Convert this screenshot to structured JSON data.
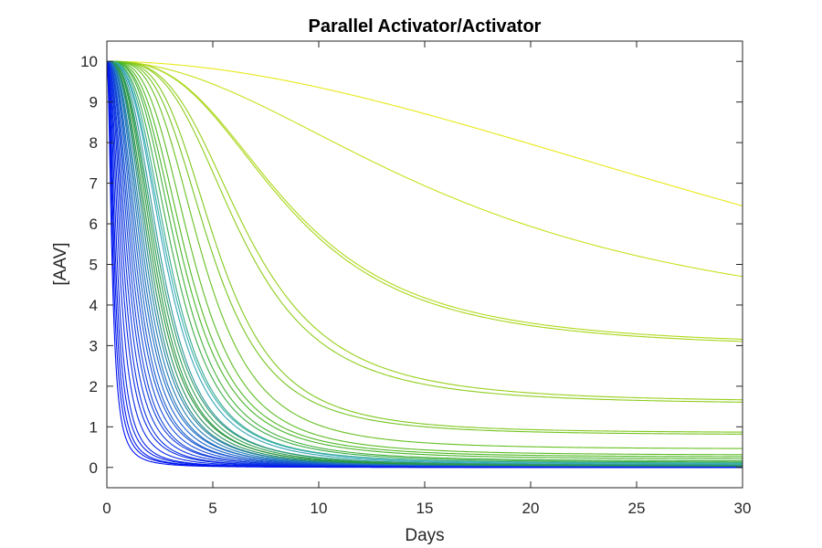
{
  "chart_data": {
    "type": "line",
    "title": "Parallel Activator/Activator",
    "xlabel": "Days",
    "ylabel": "[AAV]",
    "xlim": [
      0,
      30
    ],
    "ylim": [
      -0.5,
      10.5
    ],
    "x_ticks": [
      0,
      5,
      10,
      15,
      20,
      25,
      30
    ],
    "y_ticks": [
      0,
      1,
      2,
      3,
      4,
      5,
      6,
      7,
      8,
      9,
      10
    ],
    "grid": false,
    "legend": "none",
    "box": true,
    "initial_value": 10,
    "curve_model": "y(t) = yf + (10 - yf) * (1 + (t/t50)^n)^-1",
    "series": [
      {
        "t50": 41,
        "n": 1.9,
        "yf": 0,
        "color": "#e8e81a"
      },
      {
        "t50": 17,
        "n": 2.0,
        "yf": 3.0,
        "color": "#c8e01a"
      },
      {
        "t50": 8.6,
        "n": 2.8,
        "yf": 2.95,
        "color": "#b0d91a"
      },
      {
        "t50": 8.5,
        "n": 2.8,
        "yf": 2.9,
        "color": "#a8d51a"
      },
      {
        "t50": 6.6,
        "n": 3.2,
        "yf": 1.6,
        "color": "#96d01a"
      },
      {
        "t50": 6.3,
        "n": 3.2,
        "yf": 1.55,
        "color": "#8ecd1c"
      },
      {
        "t50": 5.2,
        "n": 3.5,
        "yf": 0.85,
        "color": "#80c81e"
      },
      {
        "t50": 4.9,
        "n": 3.4,
        "yf": 0.8,
        "color": "#74c420"
      },
      {
        "t50": 4.5,
        "n": 3.4,
        "yf": 0.45,
        "color": "#68c022"
      },
      {
        "t50": 4.1,
        "n": 3.3,
        "yf": 0.3,
        "color": "#5cbc24"
      },
      {
        "t50": 3.8,
        "n": 3.2,
        "yf": 0.25,
        "color": "#50b826"
      },
      {
        "t50": 3.6,
        "n": 3.1,
        "yf": 0.2,
        "color": "#48b42a"
      },
      {
        "t50": 3.4,
        "n": 3.1,
        "yf": 0.15,
        "color": "#42b03a"
      },
      {
        "t50": 3.2,
        "n": 3.0,
        "yf": 0.12,
        "color": "#3cac4a"
      },
      {
        "t50": 3.0,
        "n": 3.0,
        "yf": 0.1,
        "color": "#38aa8c"
      },
      {
        "t50": 2.9,
        "n": 2.9,
        "yf": 0.08,
        "color": "#36b0b0"
      },
      {
        "t50": 2.8,
        "n": 2.9,
        "yf": 0.06,
        "color": "#34a4b8"
      },
      {
        "t50": 2.6,
        "n": 2.9,
        "yf": 0.05,
        "color": "#3098a0"
      },
      {
        "t50": 2.5,
        "n": 2.8,
        "yf": 0.04,
        "color": "#2e9a6a"
      },
      {
        "t50": 2.4,
        "n": 2.8,
        "yf": 0.03,
        "color": "#2c9e50"
      },
      {
        "t50": 2.3,
        "n": 2.8,
        "yf": 0.02,
        "color": "#2a9a46"
      },
      {
        "t50": 2.2,
        "n": 2.7,
        "yf": 0.02,
        "color": "#28943e"
      },
      {
        "t50": 2.1,
        "n": 2.7,
        "yf": 0.01,
        "color": "#268e60"
      },
      {
        "t50": 2.0,
        "n": 2.7,
        "yf": 0.01,
        "color": "#24888a"
      },
      {
        "t50": 1.9,
        "n": 2.6,
        "yf": 0.0,
        "color": "#2282a4"
      },
      {
        "t50": 1.8,
        "n": 2.6,
        "yf": 0.0,
        "color": "#207ab4"
      },
      {
        "t50": 1.7,
        "n": 2.6,
        "yf": 0.0,
        "color": "#1e72bc"
      },
      {
        "t50": 1.6,
        "n": 2.5,
        "yf": 0.0,
        "color": "#1c6ac2"
      },
      {
        "t50": 1.5,
        "n": 2.5,
        "yf": 0.0,
        "color": "#1a62c8"
      },
      {
        "t50": 1.4,
        "n": 2.5,
        "yf": 0.0,
        "color": "#185ace"
      },
      {
        "t50": 1.3,
        "n": 2.4,
        "yf": 0.0,
        "color": "#1652d2"
      },
      {
        "t50": 1.2,
        "n": 2.4,
        "yf": 0.0,
        "color": "#144ad6"
      },
      {
        "t50": 1.1,
        "n": 2.4,
        "yf": 0.0,
        "color": "#1242da"
      },
      {
        "t50": 1.0,
        "n": 2.3,
        "yf": 0.0,
        "color": "#103cde"
      },
      {
        "t50": 0.9,
        "n": 2.3,
        "yf": 0.0,
        "color": "#0e36e0"
      },
      {
        "t50": 0.8,
        "n": 2.3,
        "yf": 0.0,
        "color": "#0c30e2"
      },
      {
        "t50": 0.7,
        "n": 2.2,
        "yf": 0.0,
        "color": "#0a2ae4"
      },
      {
        "t50": 0.6,
        "n": 2.2,
        "yf": 0.0,
        "color": "#0826e6"
      },
      {
        "t50": 0.5,
        "n": 2.2,
        "yf": 0.0,
        "color": "#0622e8"
      },
      {
        "t50": 0.42,
        "n": 2.1,
        "yf": 0.0,
        "color": "#041eea"
      },
      {
        "t50": 0.36,
        "n": 2.1,
        "yf": 0.0,
        "color": "#021aec"
      },
      {
        "t50": 0.3,
        "n": 2.0,
        "yf": 0.0,
        "color": "#0016ee"
      },
      {
        "t50": 0.25,
        "n": 2.0,
        "yf": 0.0,
        "color": "#0012f0"
      }
    ]
  }
}
